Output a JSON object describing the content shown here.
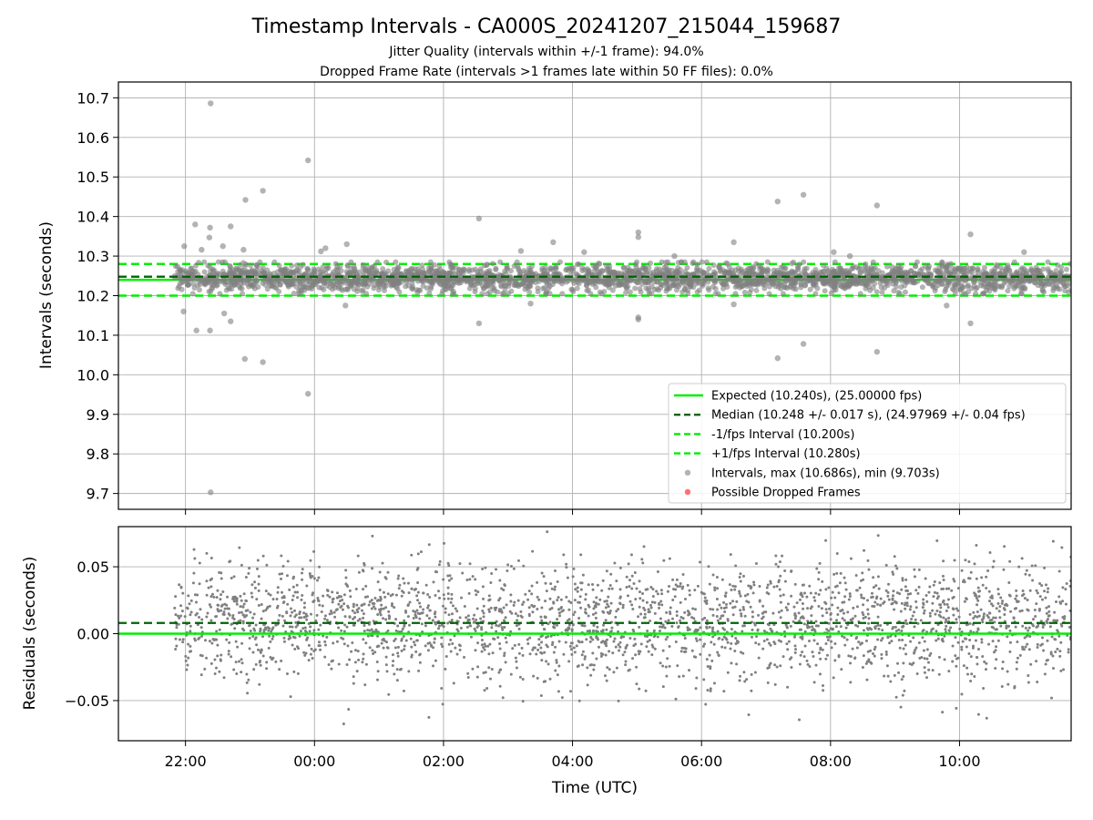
{
  "title": "Timestamp Intervals - CA000S_20241207_215044_159687",
  "subtitle_1": "Jitter Quality (intervals within +/-1 frame): 94.0%",
  "subtitle_2": "Dropped Frame Rate (intervals >1 frames late within 50 FF files): 0.0%",
  "colors": {
    "expected": "#00ee00",
    "median": "#006400",
    "interval_band": "#00ee00",
    "points": "#808080",
    "dropped": "#ff4d4d",
    "grid": "#b0b0b0"
  },
  "chart_data": [
    {
      "type": "scatter",
      "name": "intervals",
      "ylabel": "Intervals (seconds)",
      "xlim_hours": [
        -3.04,
        11.73
      ],
      "ylim": [
        9.66,
        10.74
      ],
      "yticks": [
        9.7,
        9.8,
        9.9,
        10.0,
        10.1,
        10.2,
        10.3,
        10.4,
        10.5,
        10.6,
        10.7
      ],
      "ytick_labels": [
        "9.7",
        "9.8",
        "9.9",
        "10.0",
        "10.1",
        "10.2",
        "10.3",
        "10.4",
        "10.5",
        "10.6",
        "10.7"
      ],
      "grid": true,
      "legend_position": "lower-right",
      "reference_lines": {
        "expected": 10.24,
        "median": 10.248,
        "minus_interval": 10.2,
        "plus_interval": 10.28
      },
      "dense_band": {
        "t_start": -2.17,
        "t_end": 11.73,
        "y_low": 10.205,
        "y_high": 10.285,
        "center": 10.245
      },
      "outliers": [
        {
          "t": -2.03,
          "y": 10.16
        },
        {
          "t": -2.02,
          "y": 10.325
        },
        {
          "t": -1.85,
          "y": 10.38
        },
        {
          "t": -1.83,
          "y": 10.112
        },
        {
          "t": -1.75,
          "y": 10.316
        },
        {
          "t": -1.63,
          "y": 10.347
        },
        {
          "t": -1.62,
          "y": 10.372
        },
        {
          "t": -1.61,
          "y": 10.686
        },
        {
          "t": -1.62,
          "y": 10.112
        },
        {
          "t": -1.61,
          "y": 9.703
        },
        {
          "t": -1.42,
          "y": 10.325
        },
        {
          "t": -1.4,
          "y": 10.155
        },
        {
          "t": -1.3,
          "y": 10.375
        },
        {
          "t": -1.3,
          "y": 10.135
        },
        {
          "t": -1.1,
          "y": 10.316
        },
        {
          "t": -1.07,
          "y": 10.442
        },
        {
          "t": -1.08,
          "y": 10.04
        },
        {
          "t": -0.8,
          "y": 10.465
        },
        {
          "t": -0.8,
          "y": 10.032
        },
        {
          "t": -0.1,
          "y": 10.542
        },
        {
          "t": -0.1,
          "y": 9.952
        },
        {
          "t": 0.1,
          "y": 10.312
        },
        {
          "t": 0.17,
          "y": 10.32
        },
        {
          "t": 0.5,
          "y": 10.33
        },
        {
          "t": 0.48,
          "y": 10.175
        },
        {
          "t": 2.55,
          "y": 10.395
        },
        {
          "t": 2.55,
          "y": 10.13
        },
        {
          "t": 3.2,
          "y": 10.313
        },
        {
          "t": 3.7,
          "y": 10.335
        },
        {
          "t": 3.35,
          "y": 10.18
        },
        {
          "t": 4.18,
          "y": 10.31
        },
        {
          "t": 5.02,
          "y": 10.36
        },
        {
          "t": 5.02,
          "y": 10.348
        },
        {
          "t": 5.02,
          "y": 10.145
        },
        {
          "t": 5.02,
          "y": 10.14
        },
        {
          "t": 5.58,
          "y": 10.3
        },
        {
          "t": 6.5,
          "y": 10.335
        },
        {
          "t": 6.5,
          "y": 10.178
        },
        {
          "t": 7.18,
          "y": 10.438
        },
        {
          "t": 7.18,
          "y": 10.042
        },
        {
          "t": 7.58,
          "y": 10.455
        },
        {
          "t": 7.58,
          "y": 10.078
        },
        {
          "t": 8.05,
          "y": 10.31
        },
        {
          "t": 8.3,
          "y": 10.3
        },
        {
          "t": 8.72,
          "y": 10.428
        },
        {
          "t": 8.72,
          "y": 10.058
        },
        {
          "t": 10.17,
          "y": 10.355
        },
        {
          "t": 10.17,
          "y": 10.13
        },
        {
          "t": 11.0,
          "y": 10.31
        },
        {
          "t": 9.8,
          "y": 10.175
        }
      ],
      "legend": [
        {
          "kind": "solid",
          "color": "#00ee00",
          "label": "Expected (10.240s), (25.00000 fps)"
        },
        {
          "kind": "dashed",
          "color": "#006400",
          "label": "Median (10.248 +/- 0.017 s), (24.97969 +/- 0.04 fps)"
        },
        {
          "kind": "dashed",
          "color": "#00ee00",
          "label": "-1/fps Interval (10.200s)"
        },
        {
          "kind": "dashed",
          "color": "#00ee00",
          "label": "+1/fps Interval (10.280s)"
        },
        {
          "kind": "dot",
          "color": "#a0a0a0",
          "label": "Intervals, max (10.686s), min (9.703s)"
        },
        {
          "kind": "dot",
          "color": "#ff4d4d",
          "label": "Possible Dropped Frames"
        }
      ]
    },
    {
      "type": "scatter",
      "name": "residuals",
      "ylabel": "Residuals (seconds)",
      "xlabel": "Time (UTC)",
      "xlim_hours": [
        -3.04,
        11.73
      ],
      "xticks_hours": [
        -2,
        0,
        2,
        4,
        6,
        8,
        10
      ],
      "xtick_labels": [
        "22:00",
        "00:00",
        "02:00",
        "04:00",
        "06:00",
        "08:00",
        "10:00"
      ],
      "ylim": [
        -0.08,
        0.08
      ],
      "yticks": [
        -0.05,
        0.0,
        0.05
      ],
      "ytick_labels": [
        "−0.05",
        "0.00",
        "0.05"
      ],
      "grid": true,
      "reference_lines": {
        "zero": 0.0,
        "median_offset": 0.008
      },
      "scatter_range": {
        "t_start": -2.17,
        "t_end": 11.73,
        "y_min": -0.08,
        "y_max": 0.078
      }
    }
  ]
}
